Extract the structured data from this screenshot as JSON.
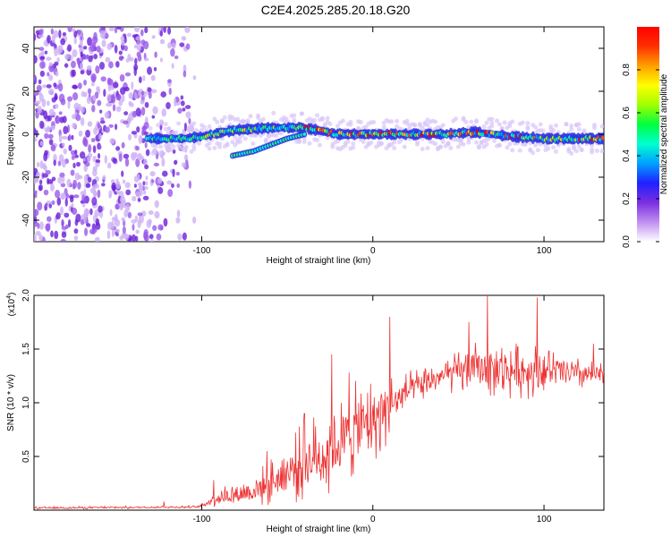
{
  "title": "C2E4.2025.285.20.18.G20",
  "chart_data": [
    {
      "type": "heatmap",
      "name": "spectrogram",
      "xlabel": "Height of straight line (km)",
      "ylabel": "Frequency (Hz)",
      "xlim": [
        -198,
        135
      ],
      "ylim": [
        -50,
        50
      ],
      "xticks": [
        -100,
        0,
        100
      ],
      "yticks": [
        -40,
        -20,
        0,
        20,
        40
      ],
      "colorbar": {
        "label": "Normalized spectral amplitude",
        "range": [
          0.0,
          1.0
        ],
        "ticks": [
          "0.0",
          "0.2",
          "0.4",
          "0.6",
          "0.8"
        ],
        "colors": [
          "#ffffff",
          "#c08ff0",
          "#7a2fe0",
          "#2020ff",
          "#00a0ff",
          "#00ffd0",
          "#00ff40",
          "#a0ff00",
          "#ffff00",
          "#ffa000",
          "#ff3000",
          "#ff0000"
        ]
      },
      "signal_track": [
        {
          "x": -132,
          "f": -2
        },
        {
          "x": -110,
          "f": -2
        },
        {
          "x": -100,
          "f": -1
        },
        {
          "x": -80,
          "f": 2
        },
        {
          "x": -60,
          "f": 3
        },
        {
          "x": -40,
          "f": 3
        },
        {
          "x": -20,
          "f": 0
        },
        {
          "x": 0,
          "f": 0
        },
        {
          "x": 20,
          "f": 0
        },
        {
          "x": 40,
          "f": 0
        },
        {
          "x": 60,
          "f": 1
        },
        {
          "x": 80,
          "f": -1
        },
        {
          "x": 100,
          "f": -2
        },
        {
          "x": 120,
          "f": -2
        },
        {
          "x": 135,
          "f": -2
        }
      ],
      "secondary_track": [
        {
          "x": -82,
          "f": -10
        },
        {
          "x": -70,
          "f": -8
        },
        {
          "x": -60,
          "f": -5
        },
        {
          "x": -50,
          "f": -2
        },
        {
          "x": -40,
          "f": 0
        }
      ],
      "noise_band_x": [
        -198,
        -104
      ]
    },
    {
      "type": "line",
      "name": "snr",
      "xlabel": "Height of straight line (km)",
      "ylabel": "SNR (10 * v/v)",
      "y_multiplier": "(x10",
      "y_multiplier_exp": "4",
      "y_multiplier_close": ")",
      "xlim": [
        -198,
        135
      ],
      "ylim": [
        0,
        2.0
      ],
      "xticks": [
        -100,
        0,
        100
      ],
      "yticks": [
        "0.5",
        "1.0",
        "1.5",
        "2.0"
      ],
      "color": "#ee3333",
      "envelope": [
        {
          "x": -198,
          "mean": 0.02,
          "amp": 0.01
        },
        {
          "x": -102,
          "mean": 0.03,
          "amp": 0.01
        },
        {
          "x": -90,
          "mean": 0.12,
          "amp": 0.08
        },
        {
          "x": -70,
          "mean": 0.18,
          "amp": 0.12
        },
        {
          "x": -55,
          "mean": 0.3,
          "amp": 0.2
        },
        {
          "x": -40,
          "mean": 0.45,
          "amp": 0.3
        },
        {
          "x": -25,
          "mean": 0.55,
          "amp": 0.35
        },
        {
          "x": -10,
          "mean": 0.75,
          "amp": 0.35
        },
        {
          "x": 5,
          "mean": 0.9,
          "amp": 0.3
        },
        {
          "x": 20,
          "mean": 1.1,
          "amp": 0.15
        },
        {
          "x": 40,
          "mean": 1.25,
          "amp": 0.12
        },
        {
          "x": 60,
          "mean": 1.32,
          "amp": 0.2
        },
        {
          "x": 80,
          "mean": 1.3,
          "amp": 0.22
        },
        {
          "x": 100,
          "mean": 1.3,
          "amp": 0.2
        },
        {
          "x": 120,
          "mean": 1.27,
          "amp": 0.12
        },
        {
          "x": 135,
          "mean": 1.25,
          "amp": 0.1
        }
      ],
      "spikes": [
        {
          "x": -122,
          "y": 0.08
        },
        {
          "x": -93,
          "y": 0.28
        },
        {
          "x": -62,
          "y": 0.55
        },
        {
          "x": -40,
          "y": 0.9
        },
        {
          "x": -24,
          "y": 1.45
        },
        {
          "x": -14,
          "y": 1.28
        },
        {
          "x": 10,
          "y": 1.8
        },
        {
          "x": 56,
          "y": 1.75
        },
        {
          "x": 67,
          "y": 2.0
        },
        {
          "x": 96,
          "y": 1.98
        },
        {
          "x": 129,
          "y": 1.55
        }
      ]
    }
  ]
}
